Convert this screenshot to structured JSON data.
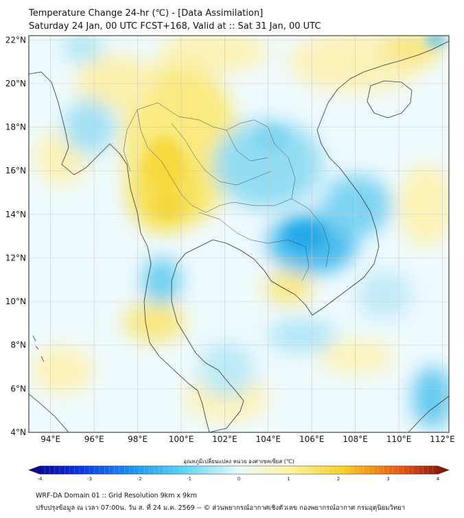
{
  "header": {
    "title_line1": "Temperature Change 24-hr (℃) - [Data Assimilation]",
    "title_line2": "Saturday 24 Jan, 00 UTC FCST+168, Valid at :: Sat 31 Jan, 00 UTC"
  },
  "map": {
    "lon_labels": [
      "94°E",
      "96°E",
      "98°E",
      "100°E",
      "102°E",
      "104°E",
      "106°E",
      "108°E",
      "110°E",
      "112°E"
    ],
    "lat_labels": [
      "22°N",
      "20°N",
      "18°N",
      "16°N",
      "14°N",
      "12°N",
      "10°N",
      "8°N",
      "6°N",
      "4°N"
    ],
    "lon_range": [
      93,
      112.3
    ],
    "lat_range": [
      4,
      22.2
    ],
    "grid": true
  },
  "colorbar": {
    "label": "อุณหภูมิเปลี่ยนแปลง หน่วย องศาเซลเซียส (℃)",
    "ticks": [
      "-4",
      "-3",
      "-2",
      "-1",
      "0",
      "1",
      "2",
      "3",
      "4"
    ],
    "range": [
      -4,
      4
    ],
    "colors": [
      "#08008a",
      "#0b33e0",
      "#1b96ee",
      "#5ad6f0",
      "#e8fafd",
      "#fdf3a0",
      "#f5cf23",
      "#ea5a10",
      "#7a0a0a"
    ]
  },
  "footer": {
    "line1": "WRF-DA Domain 01 :: Grid Resolution 9km x 9km",
    "line2": "ปรับปรุงข้อมูล ณ เวลา 07:00น. วัน ส. ที่ 24 ม.ค. 2569 -- © ส่วนพยากรณ์อากาศเชิงตัวเลข กองพยากรณ์อากาศ กรมอุตุนิยมวิทยา"
  }
}
